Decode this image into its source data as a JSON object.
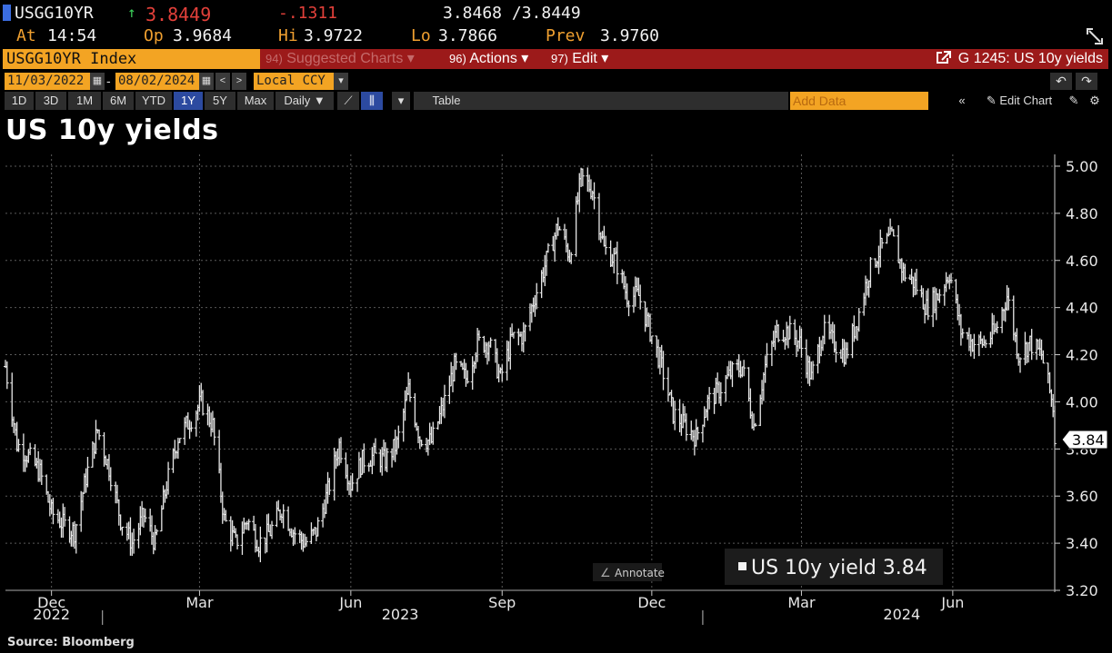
{
  "quote": {
    "ticker": "USGG10YR",
    "last_arrow": "↑",
    "last": "3.8449",
    "change": "-.1311",
    "bid_ask": "3.8468 /3.8449",
    "at_label": "At",
    "at_time": "14:54",
    "open_label": "Op",
    "open": "3.9684",
    "high_label": "Hi",
    "high": "3.9722",
    "low_label": "Lo",
    "low": "3.7866",
    "prev_label": "Prev",
    "prev": "3.9760"
  },
  "menubar": {
    "security": "USGG10YR Index",
    "suggested_num": "94)",
    "suggested": "Suggested Charts",
    "suggested_arrow": "▾",
    "actions_num": "96)",
    "actions": "Actions",
    "actions_arrow": "▾",
    "edit_num": "97)",
    "edit": "Edit",
    "edit_arrow": "▾",
    "chart_id": "G 1245: US 10y yields"
  },
  "datebar": {
    "start": "11/03/2022",
    "end": "08/02/2024",
    "dash": "-",
    "currency": "Local CCY",
    "cal_glyph": "▦",
    "prev_glyph": "<",
    "next_glyph": ">",
    "dropdown_glyph": "▾",
    "undo_glyph": "↶",
    "redo_glyph": "↷"
  },
  "toolbar": {
    "ranges": [
      "1D",
      "3D",
      "1M",
      "6M",
      "YTD",
      "1Y",
      "5Y",
      "Max"
    ],
    "active_range": "1Y",
    "frequency": "Daily ▼",
    "line_glyph": "⟋",
    "bar_glyph": "⫼",
    "more_glyph": "▾",
    "table": "Table",
    "add_data_placeholder": "Add Data",
    "collapse_glyph": "«",
    "edit_chart": "✎ Edit Chart",
    "pencil_glyph": "✎",
    "gear_glyph": "⚙"
  },
  "title": "US 10y yields",
  "source": "Source: Bloomberg",
  "annotate": "Annotate",
  "annotate_glyph": "∠",
  "colors": {
    "accent": "#f3a423",
    "menu_red": "#9c1a1a",
    "up": "#3cd05a",
    "down": "#e2403a",
    "series": "#e8e8e8"
  },
  "chart_data": {
    "type": "line",
    "style": "ohlc-bars",
    "ylim": [
      3.2,
      5.05
    ],
    "yticks": [
      "5.00",
      "4.80",
      "4.60",
      "4.40",
      "4.20",
      "4.00",
      "3.80",
      "3.60",
      "3.40",
      "3.20"
    ],
    "ytick_values": [
      5.0,
      4.8,
      4.6,
      4.4,
      4.2,
      4.0,
      3.8,
      3.6,
      3.4,
      3.2
    ],
    "xlim": [
      "2022-11-03",
      "2024-08-02"
    ],
    "xticks": [
      {
        "label": "Dec",
        "date": "2022-12-01"
      },
      {
        "label": "Mar",
        "date": "2023-03-01"
      },
      {
        "label": "Jun",
        "date": "2023-06-01"
      },
      {
        "label": "Sep",
        "date": "2023-09-01"
      },
      {
        "label": "Dec",
        "date": "2023-12-01"
      },
      {
        "label": "Mar",
        "date": "2024-03-01"
      },
      {
        "label": "Jun",
        "date": "2024-06-01"
      }
    ],
    "years": [
      {
        "label": "2022",
        "date": "2022-12-01"
      },
      {
        "label": "2023",
        "date": "2023-07-01"
      },
      {
        "label": "2024",
        "date": "2024-05-01"
      }
    ],
    "year_dividers": [
      "2023-01-01",
      "2024-01-01"
    ],
    "grid": true,
    "last_value_label": "3.84",
    "legend": {
      "position": "bottom-right",
      "text": "US 10y yield 3.84"
    },
    "series": [
      {
        "name": "US 10y yield",
        "x": [
          "2022-11-03",
          "2022-11-10",
          "2022-11-17",
          "2022-11-24",
          "2022-12-01",
          "2022-12-08",
          "2022-12-15",
          "2022-12-22",
          "2022-12-29",
          "2023-01-05",
          "2023-01-12",
          "2023-01-19",
          "2023-01-26",
          "2023-02-02",
          "2023-02-09",
          "2023-02-16",
          "2023-02-23",
          "2023-03-02",
          "2023-03-09",
          "2023-03-16",
          "2023-03-23",
          "2023-03-30",
          "2023-04-06",
          "2023-04-13",
          "2023-04-20",
          "2023-04-27",
          "2023-05-04",
          "2023-05-11",
          "2023-05-18",
          "2023-05-25",
          "2023-06-01",
          "2023-06-08",
          "2023-06-15",
          "2023-06-22",
          "2023-06-29",
          "2023-07-06",
          "2023-07-13",
          "2023-07-20",
          "2023-07-27",
          "2023-08-03",
          "2023-08-10",
          "2023-08-17",
          "2023-08-24",
          "2023-08-31",
          "2023-09-07",
          "2023-09-14",
          "2023-09-21",
          "2023-09-28",
          "2023-10-05",
          "2023-10-12",
          "2023-10-19",
          "2023-10-26",
          "2023-11-02",
          "2023-11-09",
          "2023-11-16",
          "2023-11-23",
          "2023-11-30",
          "2023-12-07",
          "2023-12-14",
          "2023-12-21",
          "2023-12-28",
          "2024-01-04",
          "2024-01-11",
          "2024-01-18",
          "2024-01-25",
          "2024-02-01",
          "2024-02-08",
          "2024-02-15",
          "2024-02-22",
          "2024-02-29",
          "2024-03-07",
          "2024-03-14",
          "2024-03-21",
          "2024-03-28",
          "2024-04-04",
          "2024-04-11",
          "2024-04-18",
          "2024-04-25",
          "2024-05-02",
          "2024-05-09",
          "2024-05-16",
          "2024-05-23",
          "2024-05-30",
          "2024-06-06",
          "2024-06-13",
          "2024-06-20",
          "2024-06-27",
          "2024-07-04",
          "2024-07-11",
          "2024-07-18",
          "2024-07-25",
          "2024-08-01",
          "2024-08-02"
        ],
        "y": [
          4.15,
          3.82,
          3.77,
          3.7,
          3.53,
          3.48,
          3.45,
          3.68,
          3.88,
          3.72,
          3.5,
          3.4,
          3.52,
          3.4,
          3.65,
          3.85,
          3.92,
          4.0,
          3.9,
          3.5,
          3.4,
          3.5,
          3.4,
          3.45,
          3.55,
          3.45,
          3.4,
          3.45,
          3.62,
          3.82,
          3.65,
          3.75,
          3.77,
          3.75,
          3.82,
          4.05,
          3.85,
          3.83,
          3.98,
          4.15,
          4.1,
          4.25,
          4.25,
          4.1,
          4.27,
          4.28,
          4.45,
          4.6,
          4.75,
          4.62,
          4.95,
          4.9,
          4.65,
          4.6,
          4.45,
          4.45,
          4.3,
          4.15,
          3.95,
          3.9,
          3.85,
          4.0,
          4.05,
          4.12,
          4.15,
          3.9,
          4.15,
          4.3,
          4.3,
          4.25,
          4.1,
          4.3,
          4.25,
          4.2,
          4.35,
          4.55,
          4.65,
          4.7,
          4.55,
          4.5,
          4.4,
          4.45,
          4.55,
          4.3,
          4.25,
          4.25,
          4.3,
          4.45,
          4.2,
          4.25,
          4.2,
          3.98,
          3.84
        ]
      }
    ]
  }
}
